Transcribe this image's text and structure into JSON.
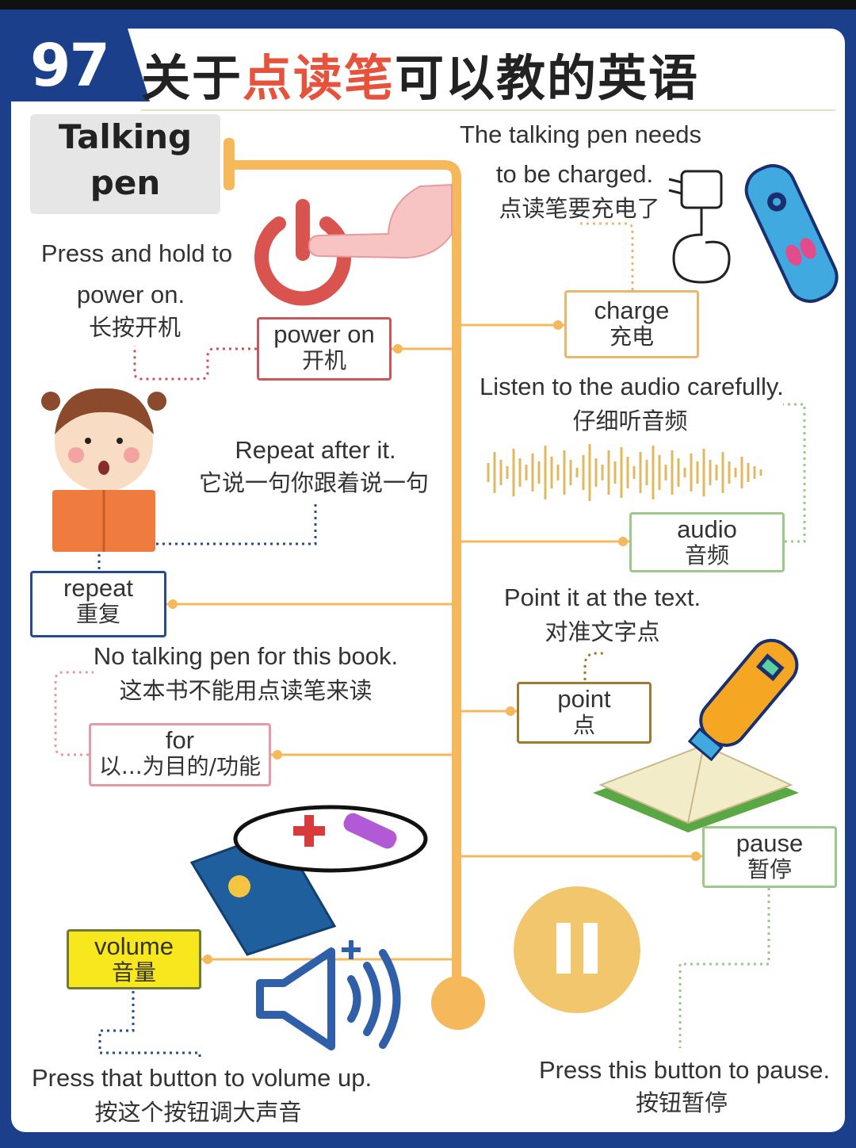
{
  "header": {
    "number": "97",
    "title_prefix": "关于",
    "title_highlight": "点读笔",
    "title_suffix": "可以教的英语"
  },
  "central_label": {
    "line1": "Talking",
    "line2": "pen"
  },
  "nodes": {
    "power_on": {
      "en": "power on",
      "zh": "开机",
      "desc_en_1": "Press and hold to",
      "desc_en_2": "power on.",
      "desc_zh": "长按开机",
      "color": "#c9565a"
    },
    "repeat": {
      "en": "repeat",
      "zh": "重复",
      "desc_en": "Repeat after it.",
      "desc_zh": "它说一句你跟着说一句",
      "color": "#2a4a8e"
    },
    "for": {
      "en": "for",
      "zh": "以...为目的/功能",
      "desc_en": "No talking pen for this book.",
      "desc_zh": "这本书不能用点读笔来读",
      "color": "#e69aa6"
    },
    "volume": {
      "en": "volume",
      "zh": "音量",
      "desc_en": "Press that button to volume up.",
      "desc_zh": "按这个按钮调大声音",
      "color": "#6e7a3a",
      "fill": "#f8e71c"
    },
    "charge": {
      "en": "charge",
      "zh": "充电",
      "desc_en_1": "The talking pen needs",
      "desc_en_2": "to be charged.",
      "desc_zh": "点读笔要充电了",
      "color": "#e8b86a"
    },
    "audio": {
      "en": "audio",
      "zh": "音频",
      "desc_en": "Listen to the audio carefully.",
      "desc_zh": "仔细听音频",
      "color": "#9cc98a"
    },
    "point": {
      "en": "point",
      "zh": "点",
      "desc_en": "Point it at the text.",
      "desc_zh": "对准文字点",
      "color": "#9c7a2e"
    },
    "pause": {
      "en": "pause",
      "zh": "暂停",
      "desc_en": "Press this button to pause.",
      "desc_zh": "按钮暂停",
      "color": "#9cc98a"
    }
  },
  "colors": {
    "frame": "#1b3f8b",
    "trunk": "#f5b95c",
    "title_highlight": "#e5533d"
  },
  "icons": [
    "power-button-icon",
    "pointing-hand-icon",
    "charger-icon",
    "talking-pen-icon",
    "girl-reading-icon",
    "sound-wave-icon",
    "book-pen-icon",
    "speaker-volume-icon",
    "pause-button-icon",
    "picture-book-icon"
  ]
}
